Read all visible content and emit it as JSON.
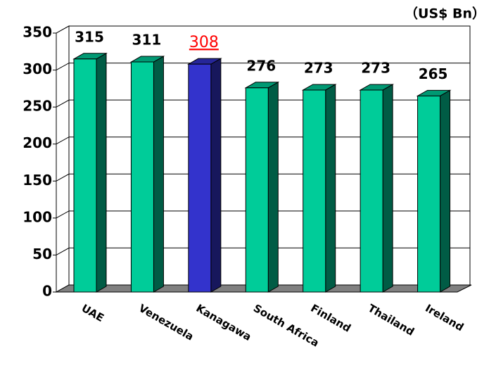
{
  "chart_data": {
    "type": "bar3d",
    "unit_label": "（US$ Bn）",
    "categories": [
      "UAE",
      "Venezuela",
      "Kanagawa",
      "South Africa",
      "Finland",
      "Thailand",
      "Ireland"
    ],
    "values": [
      315,
      311,
      308,
      276,
      273,
      273,
      265
    ],
    "colors": [
      "#00cc99",
      "#00cc99",
      "#3333cc",
      "#00cc99",
      "#00cc99",
      "#00cc99",
      "#00cc99"
    ],
    "label_colors": [
      "#000000",
      "#000000",
      "#ff0000",
      "#000000",
      "#000000",
      "#000000",
      "#000000"
    ],
    "ylim": [
      0,
      350
    ],
    "yticks": [
      0,
      50,
      100,
      150,
      200,
      250,
      300,
      350
    ],
    "grid": true
  }
}
